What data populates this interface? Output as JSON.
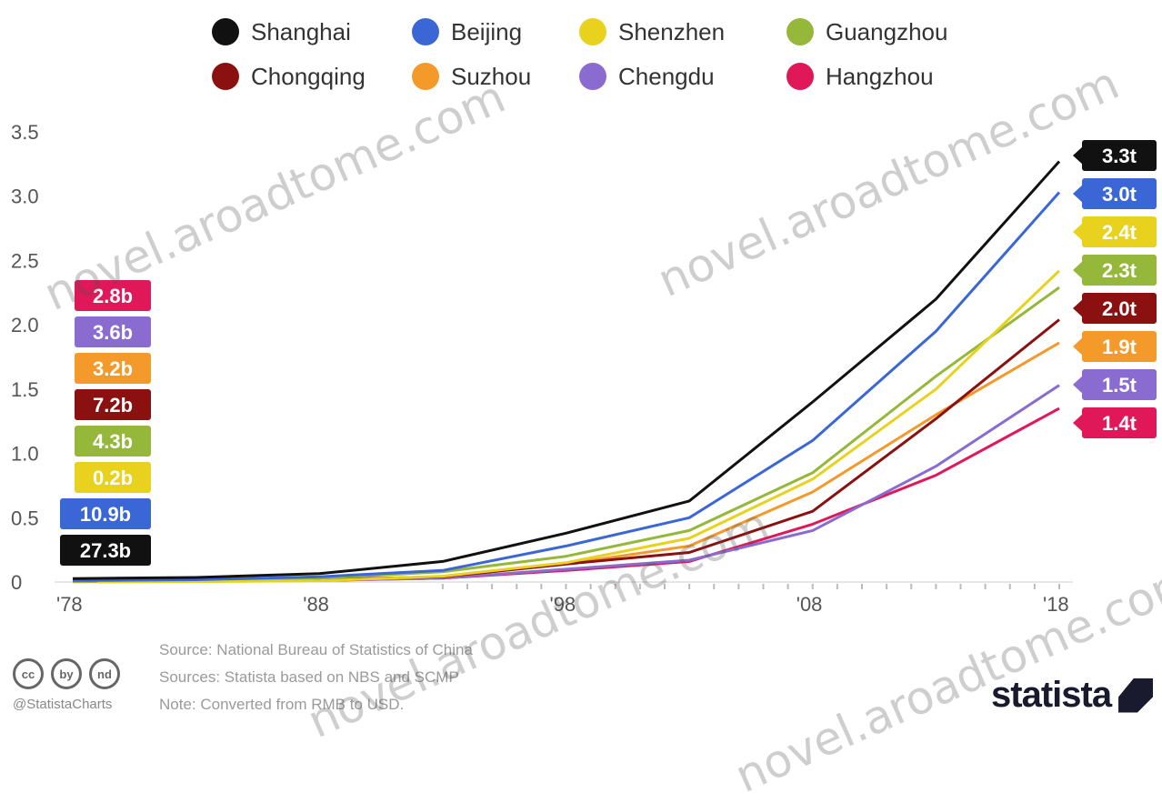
{
  "chart_data": {
    "type": "line",
    "x": [
      1978,
      1983,
      1988,
      1993,
      1998,
      2003,
      2008,
      2013,
      2018
    ],
    "x_tick_labels": [
      "'78",
      "'88",
      "'98",
      "'08",
      "'18"
    ],
    "x_ticks": [
      1978,
      1988,
      1998,
      2008,
      2018
    ],
    "y_ticks": [
      0,
      0.5,
      1.0,
      1.5,
      2.0,
      2.5,
      3.0,
      3.5
    ],
    "y_tick_labels": [
      "0",
      "0.5",
      "1.0",
      "1.5",
      "2.0",
      "2.5",
      "3.0",
      "3.5"
    ],
    "ylim": [
      0,
      3.5
    ],
    "xlim": [
      1978,
      2018
    ],
    "series": [
      {
        "name": "Shanghai",
        "color": "#111111",
        "start": 1978,
        "start_label": "27.3b",
        "end_label": "3.3t",
        "values": [
          0.027,
          0.035,
          0.065,
          0.16,
          0.38,
          0.63,
          1.4,
          2.2,
          3.27
        ]
      },
      {
        "name": "Beijing",
        "color": "#3a66d6",
        "start": 1978,
        "start_label": "10.9b",
        "end_label": "3.0t",
        "values": [
          0.011,
          0.018,
          0.041,
          0.09,
          0.28,
          0.5,
          1.1,
          1.95,
          3.03
        ]
      },
      {
        "name": "Shenzhen",
        "color": "#e8d21e",
        "start": 1979,
        "start_label": "0.2b",
        "end_label": "2.4t",
        "values": [
          0.0002,
          0.003,
          0.01,
          0.045,
          0.15,
          0.34,
          0.8,
          1.5,
          2.42
        ]
      },
      {
        "name": "Guangzhou",
        "color": "#95b83a",
        "start": 1978,
        "start_label": "4.3b",
        "end_label": "2.3t",
        "values": [
          0.004,
          0.01,
          0.03,
          0.08,
          0.2,
          0.4,
          0.85,
          1.6,
          2.29
        ]
      },
      {
        "name": "Chongqing",
        "color": "#8b1010",
        "start": 1978,
        "start_label": "7.2b",
        "end_label": "2.0t",
        "values": [
          0.007,
          0.01,
          0.02,
          0.04,
          0.14,
          0.23,
          0.55,
          1.27,
          2.04
        ]
      },
      {
        "name": "Suzhou",
        "color": "#f39a2a",
        "start": 1978,
        "start_label": "3.2b",
        "end_label": "1.9t",
        "values": [
          0.003,
          0.006,
          0.013,
          0.04,
          0.14,
          0.28,
          0.7,
          1.3,
          1.86
        ]
      },
      {
        "name": "Chengdu",
        "color": "#8a6bd0",
        "start": 1978,
        "start_label": "3.6b",
        "end_label": "1.5t",
        "values": [
          0.0036,
          0.006,
          0.013,
          0.03,
          0.1,
          0.17,
          0.4,
          0.9,
          1.53
        ]
      },
      {
        "name": "Hangzhou",
        "color": "#e0185a",
        "start": 1978,
        "start_label": "2.8b",
        "end_label": "1.4t",
        "values": [
          0.0028,
          0.005,
          0.012,
          0.03,
          0.09,
          0.16,
          0.45,
          0.83,
          1.35
        ]
      }
    ]
  },
  "legend": {
    "rows": [
      [
        "Shanghai",
        "Beijing",
        "Shenzhen",
        "Guangzhou"
      ],
      [
        "Chongqing",
        "Suzhou",
        "Chengdu",
        "Hangzhou"
      ]
    ]
  },
  "start_badges_order": [
    "Hangzhou",
    "Chengdu",
    "Suzhou",
    "Chongqing",
    "Guangzhou",
    "Shenzhen",
    "Beijing",
    "Shanghai"
  ],
  "end_badges_order": [
    "Shanghai",
    "Beijing",
    "Shenzhen",
    "Guangzhou",
    "Chongqing",
    "Suzhou",
    "Chengdu",
    "Hangzhou"
  ],
  "footer": {
    "source_lines": [
      "Source: National Bureau of Statistics of China",
      "Sources: Statista based on NBS and SCMP",
      "Note: Converted from RMB to USD."
    ],
    "handle": "@StatistaCharts",
    "brand": "statista",
    "cc_icons": [
      "cc",
      "by",
      "nd"
    ]
  },
  "watermark": {
    "text": "novel.aroadtome.com"
  }
}
